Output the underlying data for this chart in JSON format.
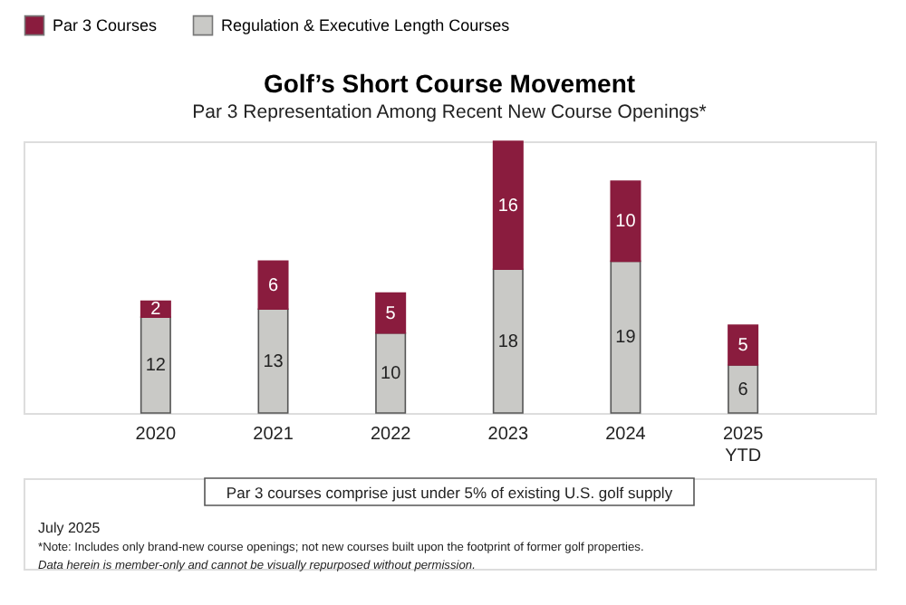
{
  "chart_data": {
    "type": "bar",
    "title": "Golf’s Short Course Movement",
    "subtitle": "Par 3 Representation Among Recent New Course Openings*",
    "categories": [
      "2020",
      "2021",
      "2022",
      "2023",
      "2024",
      "2025 YTD"
    ],
    "stacked": true,
    "data_labels": true,
    "tick_labels": "x",
    "legend": "top",
    "grid": false,
    "series": [
      {
        "name": "Regulation & Executive Length Courses",
        "color": "#c9c9c6",
        "values": [
          12,
          13,
          10,
          18,
          19,
          6
        ]
      },
      {
        "name": "Par 3 Courses",
        "color": "#8a1c3e",
        "values": [
          2,
          6,
          5,
          16,
          10,
          5
        ]
      }
    ],
    "annotations": [
      "Par 3 courses comprise just under 5% of existing U.S. golf supply",
      "July 2025",
      "*Note: Includes only brand-new course openings; not new courses built upon the footprint of former golf properties.",
      "Data herein is member-only and cannot be visually repurposed without permission."
    ]
  }
}
